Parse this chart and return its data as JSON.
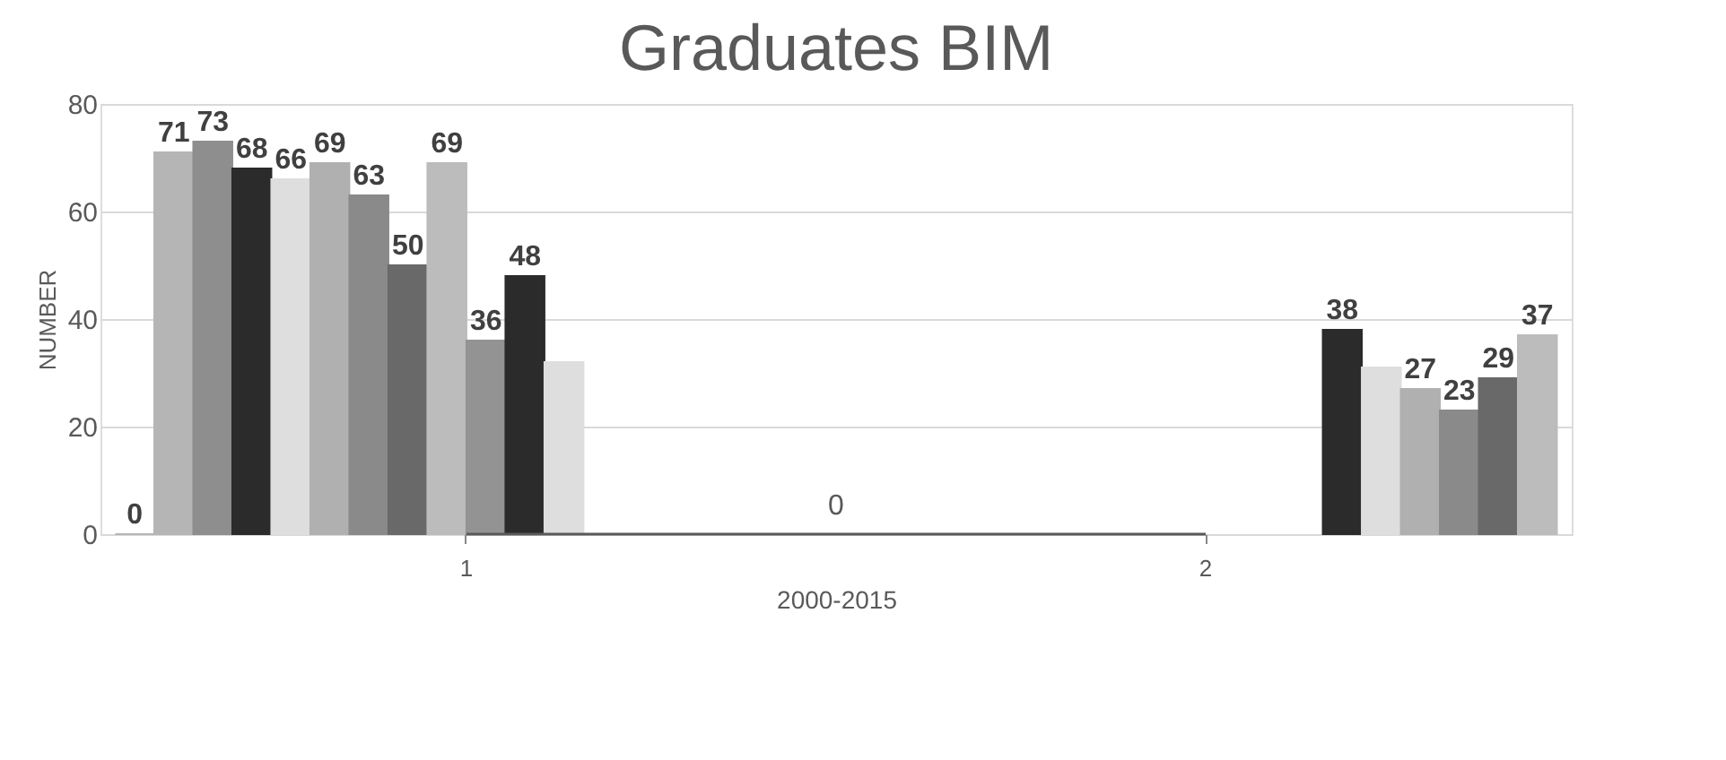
{
  "chart_data": {
    "type": "bar",
    "title": "Graduates BIM",
    "xlabel": "2000-2015",
    "ylabel": "NUMBER",
    "categories": [
      "1",
      "2"
    ],
    "series": [
      {
        "color": "#b5b5b5",
        "values": [
          0,
          null
        ],
        "value_labels": [
          "0",
          null
        ]
      },
      {
        "color": "#b5b5b5",
        "values": [
          71,
          null
        ],
        "value_labels": [
          "71",
          null
        ]
      },
      {
        "color": "#8e8e8e",
        "values": [
          73,
          null
        ],
        "value_labels": [
          "73",
          null
        ]
      },
      {
        "color": "#2b2b2b",
        "values": [
          68,
          null
        ],
        "value_labels": [
          "68",
          null
        ]
      },
      {
        "color": "#dedede",
        "values": [
          66,
          null
        ],
        "value_labels": [
          "66",
          null
        ]
      },
      {
        "color": "#b0b0b0",
        "values": [
          69,
          null
        ],
        "value_labels": [
          "69",
          null
        ]
      },
      {
        "color": "#8a8a8a",
        "values": [
          63,
          null
        ],
        "value_labels": [
          "63",
          null
        ]
      },
      {
        "color": "#696969",
        "values": [
          50,
          null
        ],
        "value_labels": [
          "50",
          null
        ]
      },
      {
        "color": "#bcbcbc",
        "values": [
          69,
          null
        ],
        "value_labels": [
          "69",
          null
        ]
      },
      {
        "color": "#939393",
        "values": [
          36,
          null
        ],
        "value_labels": [
          "36",
          null
        ]
      },
      {
        "color": "#2b2b2b",
        "values": [
          48,
          null
        ],
        "value_labels": [
          "48",
          null
        ]
      },
      {
        "color": "#dedede",
        "values": [
          32,
          null
        ],
        "value_labels": [
          null,
          null
        ]
      },
      {
        "color": "#2b2b2b",
        "values": [
          null,
          38
        ],
        "value_labels": [
          null,
          "38"
        ]
      },
      {
        "color": "#dedede",
        "values": [
          null,
          31
        ],
        "value_labels": [
          null,
          null
        ]
      },
      {
        "color": "#b0b0b0",
        "values": [
          null,
          27
        ],
        "value_labels": [
          null,
          "27"
        ]
      },
      {
        "color": "#8a8a8a",
        "values": [
          null,
          23
        ],
        "value_labels": [
          null,
          "23"
        ]
      },
      {
        "color": "#696969",
        "values": [
          null,
          29
        ],
        "value_labels": [
          null,
          "29"
        ]
      },
      {
        "color": "#bcbcbc",
        "values": [
          null,
          37
        ],
        "value_labels": [
          null,
          "37"
        ]
      },
      {
        "type": "line",
        "color": "#595959",
        "values": [
          0,
          0
        ]
      }
    ],
    "annotations": [
      "0"
    ],
    "ylim": [
      0,
      80
    ],
    "yticks": [
      0,
      20,
      40,
      60,
      80
    ],
    "grid": "y"
  }
}
